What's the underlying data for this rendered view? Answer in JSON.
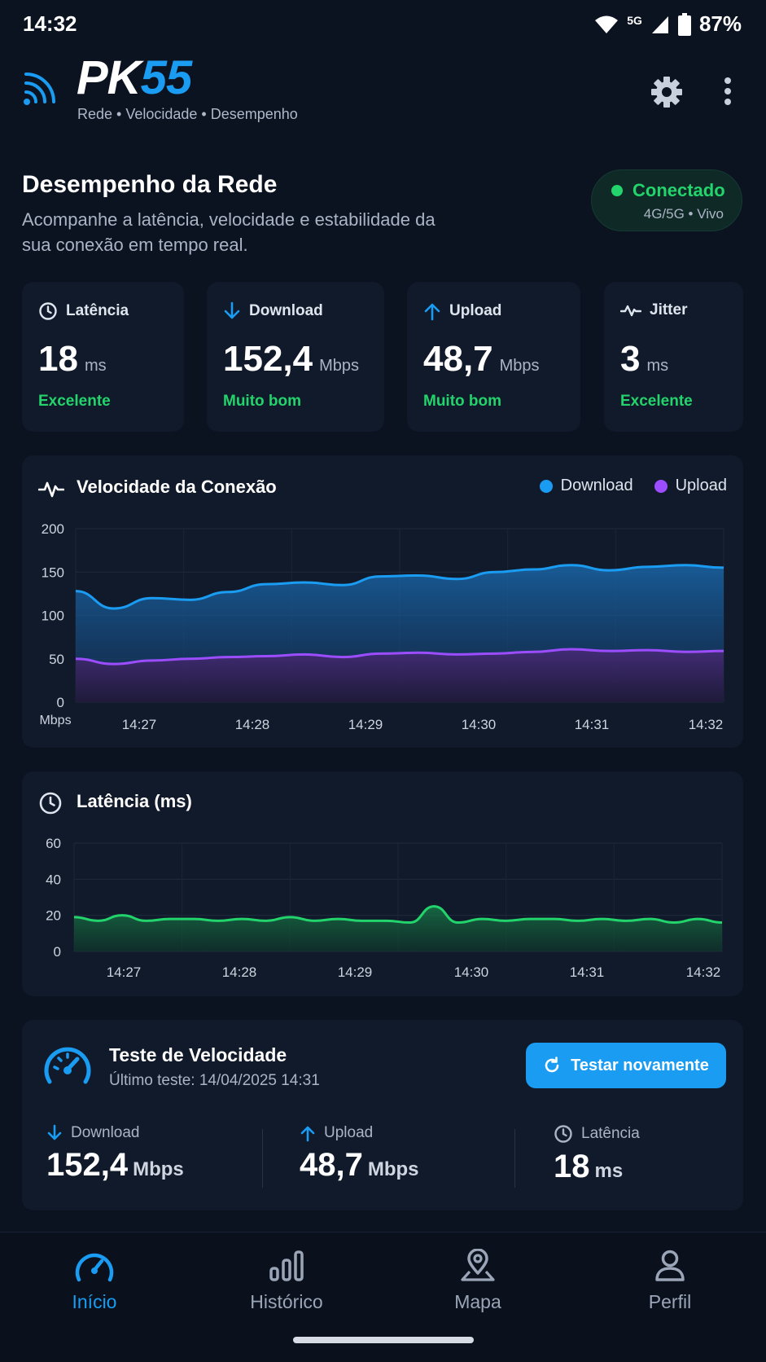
{
  "status_bar": {
    "time": "14:32",
    "network": "5G",
    "battery": "87%"
  },
  "header": {
    "logo_a": "PK",
    "logo_b": "55",
    "tagline": "Rede • Velocidade • Desempenho"
  },
  "intro": {
    "title": "Desempenho da Rede",
    "description": "Acompanhe a latência, velocidade e estabilidade da sua conexão em tempo real.",
    "connection": {
      "status": "Conectado",
      "detail": "4G/5G • Vivo",
      "color": "#22d46b"
    }
  },
  "stats": [
    {
      "label": "Latência",
      "icon": "clock-icon",
      "value": "18",
      "unit": "ms",
      "rating": "Excelente"
    },
    {
      "label": "Download",
      "icon": "arrow-down-icon",
      "value": "152,4",
      "unit": "Mbps",
      "rating": "Muito bom"
    },
    {
      "label": "Upload",
      "icon": "arrow-up-icon",
      "value": "48,7",
      "unit": "Mbps",
      "rating": "Muito bom"
    },
    {
      "label": "Jitter",
      "icon": "pulse-icon",
      "value": "3",
      "unit": "ms",
      "rating": "Excelente"
    }
  ],
  "speed_chart_card": {
    "title": "Velocidade da Conexão",
    "legend": [
      "Download",
      "Upload"
    ],
    "unit_label": "Mbps"
  },
  "latency_chart_card": {
    "title": "Latência (ms)"
  },
  "chart_data": [
    {
      "type": "area",
      "title": "Velocidade da Conexão",
      "ylabel": "Mbps",
      "ylim": [
        0,
        200
      ],
      "yticks": [
        0,
        50,
        100,
        150,
        200
      ],
      "xticks": [
        "14:27",
        "14:28",
        "14:29",
        "14:30",
        "14:31",
        "14:32"
      ],
      "x": [
        "14:26.5",
        "14:26.8",
        "14:27.0",
        "14:27.3",
        "14:27.6",
        "14:28.0",
        "14:28.3",
        "14:28.6",
        "14:29.0",
        "14:29.3",
        "14:29.6",
        "14:30.0",
        "14:30.3",
        "14:30.6",
        "14:31.0",
        "14:31.3",
        "14:31.6",
        "14:32.0"
      ],
      "series": [
        {
          "name": "Download",
          "color": "#1a9cf2",
          "values": [
            128,
            108,
            120,
            118,
            127,
            136,
            138,
            135,
            145,
            146,
            142,
            150,
            153,
            158,
            152,
            156,
            158,
            155
          ]
        },
        {
          "name": "Upload",
          "color": "#9b4dff",
          "values": [
            50,
            44,
            48,
            50,
            52,
            53,
            55,
            52,
            56,
            57,
            55,
            56,
            58,
            61,
            59,
            60,
            58,
            59
          ]
        }
      ],
      "legend": "top-right",
      "grid": true
    },
    {
      "type": "area",
      "title": "Latência (ms)",
      "ylim": [
        0,
        60
      ],
      "yticks": [
        0,
        20,
        40,
        60
      ],
      "xticks": [
        "14:27",
        "14:28",
        "14:29",
        "14:30",
        "14:31",
        "14:32"
      ],
      "series": [
        {
          "name": "",
          "color": "#22d46b",
          "values": [
            19,
            17,
            20,
            17,
            18,
            18,
            17,
            18,
            17,
            19,
            17,
            18,
            17,
            17,
            16,
            25,
            16,
            18,
            17,
            18,
            18,
            17,
            18,
            17,
            18,
            16,
            18,
            16
          ]
        }
      ],
      "grid": true
    }
  ],
  "speed_test": {
    "title": "Teste de Velocidade",
    "last_test": "Último teste: 14/04/2025 14:31",
    "button": "Testar novamente",
    "results": [
      {
        "label": "Download",
        "value": "152,4",
        "unit": "Mbps"
      },
      {
        "label": "Upload",
        "value": "48,7",
        "unit": "Mbps"
      },
      {
        "label": "Latência",
        "value": "18",
        "unit": "ms"
      }
    ]
  },
  "nav": [
    {
      "label": "Início",
      "active": true
    },
    {
      "label": "Histórico",
      "active": false
    },
    {
      "label": "Mapa",
      "active": false
    },
    {
      "label": "Perfil",
      "active": false
    }
  ],
  "colors": {
    "accent": "#1a9cf2",
    "good": "#22d46b",
    "upload": "#9b4dff",
    "background": "#0b1220",
    "card": "#111a2a"
  }
}
